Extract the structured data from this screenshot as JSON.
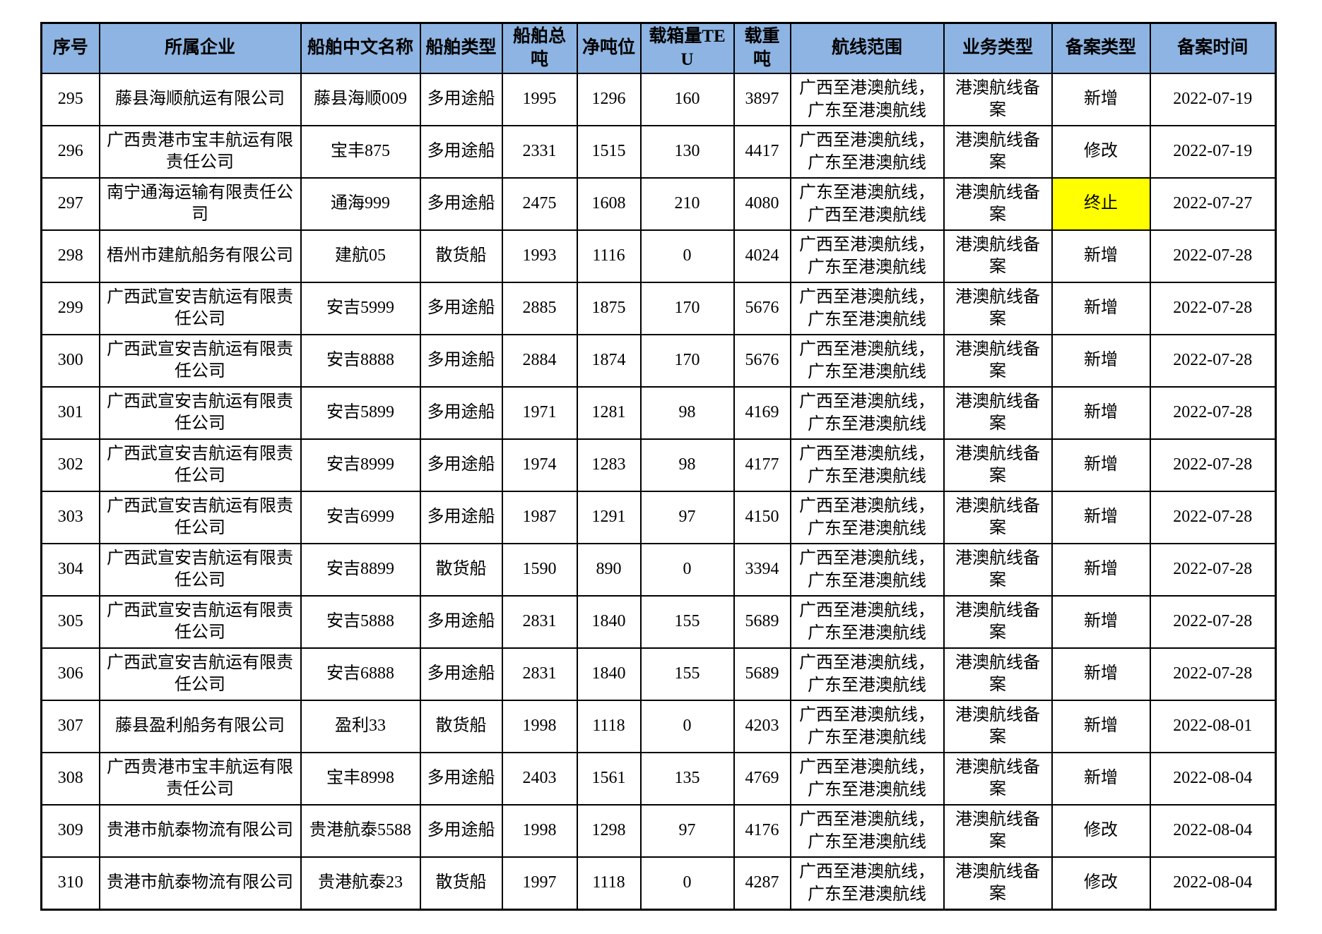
{
  "table": {
    "colors": {
      "header_bg": "#8DB4E2",
      "highlight_bg": "#FFFF00",
      "border": "#000000"
    },
    "columns": [
      {
        "key": "seq",
        "label": "序号"
      },
      {
        "key": "company",
        "label": "所属企业"
      },
      {
        "key": "ship_name",
        "label": "船舶中文名称"
      },
      {
        "key": "ship_type",
        "label": "船舶类型"
      },
      {
        "key": "gross_tonnage",
        "label": "船舶总吨"
      },
      {
        "key": "net_tonnage",
        "label": "净吨位"
      },
      {
        "key": "teu",
        "label": "载箱量TEU"
      },
      {
        "key": "deadweight",
        "label": "载重吨"
      },
      {
        "key": "route",
        "label": "航线范围"
      },
      {
        "key": "business_type",
        "label": "业务类型"
      },
      {
        "key": "filing_type",
        "label": "备案类型"
      },
      {
        "key": "filing_date",
        "label": "备案时间"
      }
    ],
    "rows": [
      {
        "seq": "295",
        "company": "藤县海顺航运有限公司",
        "ship_name": "藤县海顺009",
        "ship_type": "多用途船",
        "gross_tonnage": "1995",
        "net_tonnage": "1296",
        "teu": "160",
        "deadweight": "3897",
        "route": [
          "广西至港澳航线，",
          "广东至港澳航线"
        ],
        "business_type": "港澳航线备案",
        "filing_type": "新增",
        "filing_date": "2022-07-19"
      },
      {
        "seq": "296",
        "company": "广西贵港市宝丰航运有限责任公司",
        "ship_name": "宝丰875",
        "ship_type": "多用途船",
        "gross_tonnage": "2331",
        "net_tonnage": "1515",
        "teu": "130",
        "deadweight": "4417",
        "route": [
          "广西至港澳航线，",
          "广东至港澳航线"
        ],
        "business_type": "港澳航线备案",
        "filing_type": "修改",
        "filing_date": "2022-07-19"
      },
      {
        "seq": "297",
        "company": "南宁通海运输有限责任公司",
        "ship_name": "通海999",
        "ship_type": "多用途船",
        "gross_tonnage": "2475",
        "net_tonnage": "1608",
        "teu": "210",
        "deadweight": "4080",
        "route": [
          "广东至港澳航线，",
          "广西至港澳航线"
        ],
        "business_type": "港澳航线备案",
        "filing_type": "终止",
        "filing_type_highlight": true,
        "filing_date": "2022-07-27"
      },
      {
        "seq": "298",
        "company": "梧州市建航船务有限公司",
        "ship_name": "建航05",
        "ship_type": "散货船",
        "gross_tonnage": "1993",
        "net_tonnage": "1116",
        "teu": "0",
        "deadweight": "4024",
        "route": [
          "广西至港澳航线，",
          "广东至港澳航线"
        ],
        "business_type": "港澳航线备案",
        "filing_type": "新增",
        "filing_date": "2022-07-28"
      },
      {
        "seq": "299",
        "company": "广西武宣安吉航运有限责任公司",
        "ship_name": "安吉5999",
        "ship_type": "多用途船",
        "gross_tonnage": "2885",
        "net_tonnage": "1875",
        "teu": "170",
        "deadweight": "5676",
        "route": [
          "广西至港澳航线，",
          "广东至港澳航线"
        ],
        "business_type": "港澳航线备案",
        "filing_type": "新增",
        "filing_date": "2022-07-28"
      },
      {
        "seq": "300",
        "company": "广西武宣安吉航运有限责任公司",
        "ship_name": "安吉8888",
        "ship_type": "多用途船",
        "gross_tonnage": "2884",
        "net_tonnage": "1874",
        "teu": "170",
        "deadweight": "5676",
        "route": [
          "广西至港澳航线，",
          "广东至港澳航线"
        ],
        "business_type": "港澳航线备案",
        "filing_type": "新增",
        "filing_date": "2022-07-28"
      },
      {
        "seq": "301",
        "company": "广西武宣安吉航运有限责任公司",
        "ship_name": "安吉5899",
        "ship_type": "多用途船",
        "gross_tonnage": "1971",
        "net_tonnage": "1281",
        "teu": "98",
        "deadweight": "4169",
        "route": [
          "广西至港澳航线，",
          "广东至港澳航线"
        ],
        "business_type": "港澳航线备案",
        "filing_type": "新增",
        "filing_date": "2022-07-28"
      },
      {
        "seq": "302",
        "company": "广西武宣安吉航运有限责任公司",
        "ship_name": "安吉8999",
        "ship_type": "多用途船",
        "gross_tonnage": "1974",
        "net_tonnage": "1283",
        "teu": "98",
        "deadweight": "4177",
        "route": [
          "广西至港澳航线，",
          "广东至港澳航线"
        ],
        "business_type": "港澳航线备案",
        "filing_type": "新增",
        "filing_date": "2022-07-28"
      },
      {
        "seq": "303",
        "company": "广西武宣安吉航运有限责任公司",
        "ship_name": "安吉6999",
        "ship_type": "多用途船",
        "gross_tonnage": "1987",
        "net_tonnage": "1291",
        "teu": "97",
        "deadweight": "4150",
        "route": [
          "广西至港澳航线，",
          "广东至港澳航线"
        ],
        "business_type": "港澳航线备案",
        "filing_type": "新增",
        "filing_date": "2022-07-28"
      },
      {
        "seq": "304",
        "company": "广西武宣安吉航运有限责任公司",
        "ship_name": "安吉8899",
        "ship_type": "散货船",
        "gross_tonnage": "1590",
        "net_tonnage": "890",
        "teu": "0",
        "deadweight": "3394",
        "route": [
          "广西至港澳航线，",
          "广东至港澳航线"
        ],
        "business_type": "港澳航线备案",
        "filing_type": "新增",
        "filing_date": "2022-07-28"
      },
      {
        "seq": "305",
        "company": "广西武宣安吉航运有限责任公司",
        "ship_name": "安吉5888",
        "ship_type": "多用途船",
        "gross_tonnage": "2831",
        "net_tonnage": "1840",
        "teu": "155",
        "deadweight": "5689",
        "route": [
          "广西至港澳航线，",
          "广东至港澳航线"
        ],
        "business_type": "港澳航线备案",
        "filing_type": "新增",
        "filing_date": "2022-07-28"
      },
      {
        "seq": "306",
        "company": "广西武宣安吉航运有限责任公司",
        "ship_name": "安吉6888",
        "ship_type": "多用途船",
        "gross_tonnage": "2831",
        "net_tonnage": "1840",
        "teu": "155",
        "deadweight": "5689",
        "route": [
          "广西至港澳航线，",
          "广东至港澳航线"
        ],
        "business_type": "港澳航线备案",
        "filing_type": "新增",
        "filing_date": "2022-07-28"
      },
      {
        "seq": "307",
        "company": "藤县盈利船务有限公司",
        "ship_name": "盈利33",
        "ship_type": "散货船",
        "gross_tonnage": "1998",
        "net_tonnage": "1118",
        "teu": "0",
        "deadweight": "4203",
        "route": [
          "广西至港澳航线，",
          "广东至港澳航线"
        ],
        "business_type": "港澳航线备案",
        "filing_type": "新增",
        "filing_date": "2022-08-01"
      },
      {
        "seq": "308",
        "company": "广西贵港市宝丰航运有限责任公司",
        "ship_name": "宝丰8998",
        "ship_type": "多用途船",
        "gross_tonnage": "2403",
        "net_tonnage": "1561",
        "teu": "135",
        "deadweight": "4769",
        "route": [
          "广西至港澳航线，",
          "广东至港澳航线"
        ],
        "business_type": "港澳航线备案",
        "filing_type": "新增",
        "filing_date": "2022-08-04"
      },
      {
        "seq": "309",
        "company": "贵港市航泰物流有限公司",
        "ship_name": "贵港航泰5588",
        "ship_type": "多用途船",
        "gross_tonnage": "1998",
        "net_tonnage": "1298",
        "teu": "97",
        "deadweight": "4176",
        "route": [
          "广西至港澳航线，",
          "广东至港澳航线"
        ],
        "business_type": "港澳航线备案",
        "filing_type": "修改",
        "filing_date": "2022-08-04"
      },
      {
        "seq": "310",
        "company": "贵港市航泰物流有限公司",
        "ship_name": "贵港航泰23",
        "ship_type": "散货船",
        "gross_tonnage": "1997",
        "net_tonnage": "1118",
        "teu": "0",
        "deadweight": "4287",
        "route": [
          "广西至港澳航线，",
          "广东至港澳航线"
        ],
        "business_type": "港澳航线备案",
        "filing_type": "修改",
        "filing_date": "2022-08-04"
      }
    ]
  }
}
